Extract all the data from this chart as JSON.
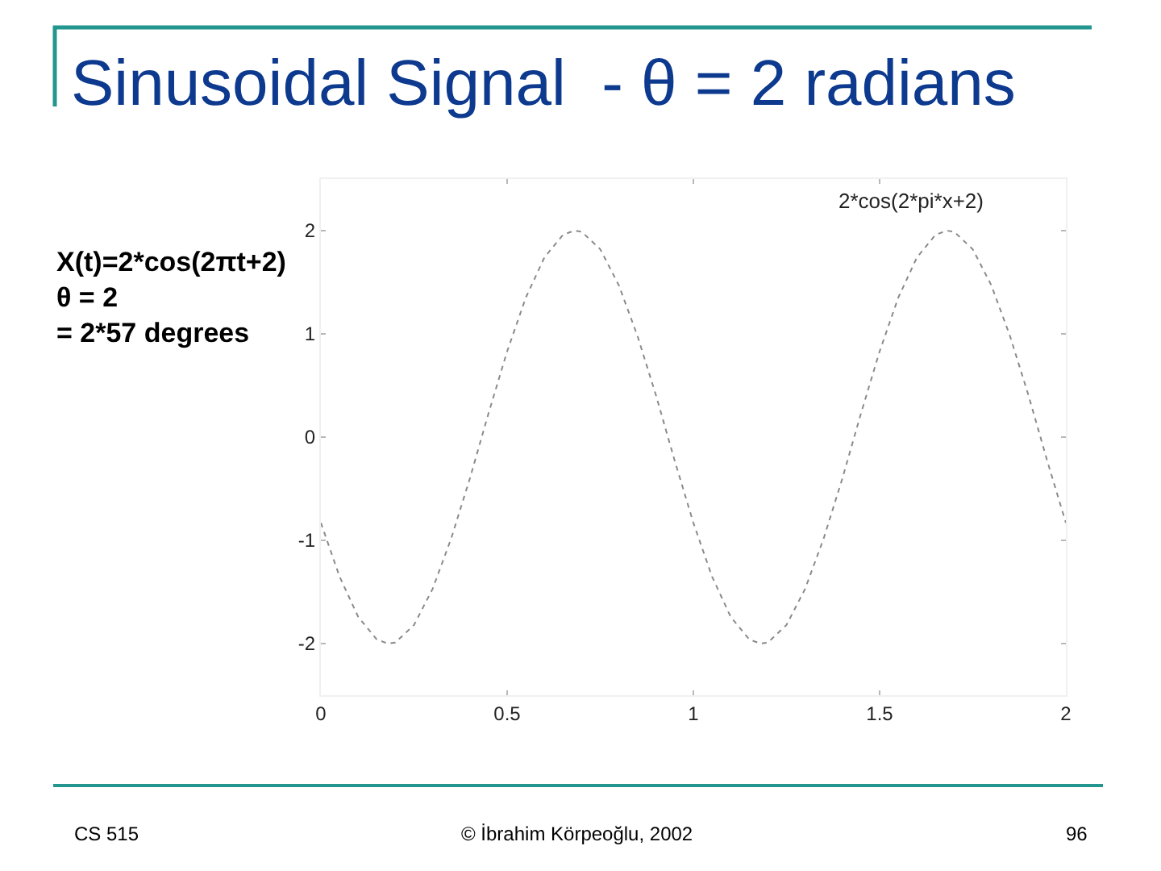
{
  "chart_data": {
    "type": "line",
    "title": "Sinusoidal Signal  - θ = 2 radians",
    "subtitle": "2*cos(2*pi*x+2)",
    "annotations": [
      "X(t)=2*cos(2πt+2)\nθ = 2\n= 2*57 degrees",
      "CS 515",
      "© İbrahim Körpeoğlu, 2002",
      "96"
    ],
    "x": [
      0,
      0.05,
      0.1,
      0.15,
      0.18,
      0.2,
      0.25,
      0.3,
      0.35,
      0.4,
      0.45,
      0.5,
      0.55,
      0.6,
      0.65,
      0.68,
      0.7,
      0.75,
      0.8,
      0.85,
      0.9,
      0.95,
      1.0,
      1.05,
      1.1,
      1.15,
      1.18,
      1.2,
      1.25,
      1.3,
      1.35,
      1.4,
      1.45,
      1.5,
      1.55,
      1.6,
      1.65,
      1.68,
      1.7,
      1.75,
      1.8,
      1.85,
      1.9,
      1.95,
      2.0
    ],
    "values": [
      -0.83,
      -1.35,
      -1.74,
      -1.96,
      -2.0,
      -1.99,
      -1.82,
      -1.47,
      -0.98,
      -0.4,
      0.23,
      0.83,
      1.35,
      1.74,
      1.96,
      2.0,
      1.99,
      1.82,
      1.47,
      0.98,
      0.4,
      -0.23,
      -0.83,
      -1.35,
      -1.74,
      -1.96,
      -2.0,
      -1.99,
      -1.82,
      -1.47,
      -0.98,
      -0.4,
      0.23,
      0.83,
      1.35,
      1.74,
      1.96,
      2.0,
      1.99,
      1.82,
      1.47,
      0.98,
      0.4,
      -0.23,
      -0.83
    ],
    "color": "#8a8a8a",
    "line_style": "dotted",
    "xlim": [
      0,
      2
    ],
    "xticks": [
      0,
      0.5,
      1,
      1.5,
      2
    ],
    "ylim": [
      -2.5,
      2.5
    ],
    "yticks": [
      -2,
      -1,
      0,
      1,
      2
    ]
  }
}
